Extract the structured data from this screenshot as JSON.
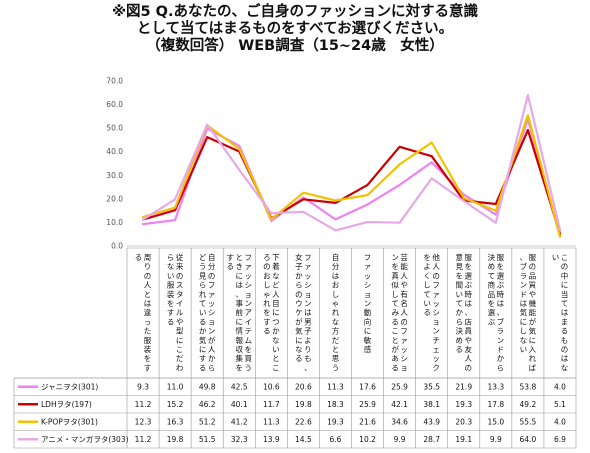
{
  "title": {
    "line1": "※図5 Q.あなたの、ご自身のファッションに対する意識",
    "line2": "として当てはまるものをすべてお選びください。",
    "line3": "（複数回答） WEB調査（15~24歳　女性）"
  },
  "chart_data": {
    "type": "line",
    "ylim": [
      0,
      70
    ],
    "yticks": [
      "0.0",
      "10.0",
      "20.0",
      "30.0",
      "40.0",
      "50.0",
      "60.0",
      "70.0"
    ],
    "categories": [
      "周りの人とは違った服装をする",
      "従来のスタイルや型にこだわらない服装をする",
      "自分のファッションが人からどう見られているか気にする",
      "ファッションアイテムを買うときには、事前に情報収集をする",
      "下着など人目につかないところのおしゃれをする",
      "ファッションは男子よりも、女子からのウケが気になる",
      "自分はおしゃれな方だと思う",
      "ファッション動向に敏感",
      "芸能人や有名人のファッションを真似してみることがある",
      "他人のファッションチェックをよくしている",
      "服を選ぶ時は、店員や友人の意見を聞いてから決める",
      "服を選ぶ時は、ブランドから決めて商品を選ぶ",
      "服の品質や機能が気に入れば、ブランドは気にしない",
      "この中に当てはまるものはない"
    ],
    "series": [
      {
        "name": "ジャニヲタ(301)",
        "color": "#ee82ee",
        "values": [
          9.3,
          11.0,
          49.8,
          42.5,
          10.6,
          20.6,
          11.3,
          17.6,
          25.9,
          35.5,
          21.9,
          13.3,
          53.8,
          4.0
        ]
      },
      {
        "name": "LDHヲタ(197)",
        "color": "#cc0000",
        "values": [
          11.2,
          15.2,
          46.2,
          40.1,
          11.7,
          19.8,
          18.3,
          25.9,
          42.1,
          38.1,
          19.3,
          17.8,
          49.2,
          5.1
        ]
      },
      {
        "name": "K-POPヲタ(301)",
        "color": "#f2c200",
        "values": [
          12.3,
          16.3,
          51.2,
          41.2,
          11.3,
          22.6,
          19.3,
          21.6,
          34.6,
          43.9,
          20.3,
          15.0,
          55.5,
          4.0
        ]
      },
      {
        "name": "アニメ・マンガヲタ(303)",
        "color": "#e6a8e6",
        "values": [
          11.2,
          19.8,
          51.5,
          32.3,
          13.9,
          14.5,
          6.6,
          10.2,
          9.9,
          28.7,
          19.1,
          9.9,
          64.0,
          6.9
        ]
      }
    ]
  }
}
